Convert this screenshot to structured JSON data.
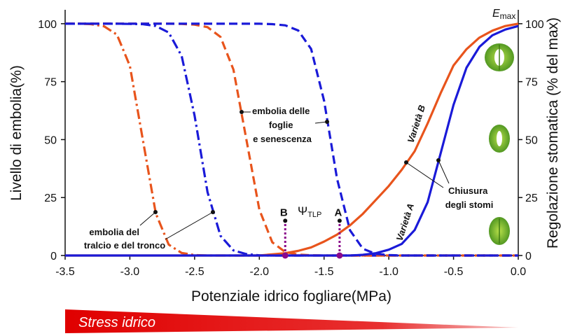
{
  "chart_data": {
    "type": "line",
    "x_label": "Potenziale idrico fogliare(MPa)",
    "y_label": "Livello di embolia(%)",
    "y2_label": "Regolazione stomatica (% del max)",
    "xlim": [
      -3.5,
      0
    ],
    "xticks": [
      -3.5,
      {
        "value": -3,
        "label": "-3.0"
      },
      -2.5,
      {
        "value": -2,
        "label": "-2.0"
      },
      -1.5,
      {
        "value": -1,
        "label": "-1.0"
      },
      -0.5,
      {
        "value": 0,
        "label": "0.0"
      }
    ],
    "ylim": [
      0,
      106
    ],
    "yticks": [
      0,
      25,
      50,
      75,
      100
    ],
    "y2lim": [
      0,
      106
    ],
    "y2ticks": [
      0,
      25,
      50,
      75,
      100
    ],
    "x": [
      -3.5,
      -3.4,
      -3.3,
      -3.2,
      -3.1,
      -3,
      -2.9,
      -2.8,
      -2.7,
      -2.6,
      -2.5,
      -2.4,
      -2.3,
      -2.2,
      -2.1,
      -2,
      -1.9,
      -1.8,
      -1.7,
      -1.6,
      -1.5,
      -1.4,
      -1.3,
      -1.2,
      -1.1,
      -1,
      -0.9,
      -0.8,
      -0.7,
      -0.6,
      -0.5,
      -0.4,
      -0.3,
      -0.2,
      -0.1,
      0
    ],
    "series": [
      {
        "color": "#e8541c",
        "style": "dashdot",
        "values": [
          100,
          100,
          99.8,
          98.9,
          95.3,
          81.8,
          50,
          18.2,
          4.7,
          1.1,
          0.2,
          0,
          0,
          0,
          0,
          0,
          0,
          0,
          0,
          0,
          0,
          0,
          0,
          0,
          0,
          0,
          0,
          0,
          0,
          0,
          0,
          0,
          0,
          0,
          0,
          0
        ]
      },
      {
        "color": "#1a1ad8",
        "style": "dashdot",
        "values": [
          100,
          100,
          100,
          100,
          100,
          99.9,
          99.8,
          99,
          96.2,
          86.1,
          60.3,
          27.3,
          8.5,
          2.2,
          0.6,
          0.1,
          0,
          0,
          0,
          0,
          0,
          0,
          0,
          0,
          0,
          0,
          0,
          0,
          0,
          0,
          0,
          0,
          0,
          0,
          0,
          0
        ]
      },
      {
        "color": "#e8541c",
        "style": "dashed",
        "values": [
          100,
          100,
          100,
          100,
          100,
          100,
          100,
          100,
          100,
          99.9,
          99.6,
          98.5,
          94.3,
          80.2,
          50,
          19.8,
          5.7,
          1.5,
          0.4,
          0.1,
          0,
          0,
          0,
          0,
          0,
          0,
          0,
          0,
          0,
          0,
          0,
          0,
          0,
          0,
          0,
          0
        ]
      },
      {
        "color": "#1a1ad8",
        "style": "dashed",
        "values": [
          100,
          100,
          100,
          100,
          100,
          100,
          100,
          100,
          100,
          100,
          100,
          100,
          100,
          100,
          100,
          100,
          99.8,
          99.3,
          97.1,
          89.1,
          66.8,
          33.2,
          10.9,
          2.9,
          0.7,
          0.2,
          0,
          0,
          0,
          0,
          0,
          0,
          0,
          0,
          0,
          0
        ]
      },
      {
        "color": "#e8541c",
        "style": "solid",
        "axis": "y2",
        "values": [
          0,
          0,
          0,
          0,
          0,
          0,
          0,
          0,
          0,
          0,
          0,
          0,
          0,
          0,
          0,
          0,
          0.5,
          1,
          2,
          3.5,
          6,
          9,
          13,
          18,
          24,
          30,
          37,
          45,
          57,
          70,
          82,
          89,
          94,
          97,
          99,
          100
        ]
      },
      {
        "color": "#1a1ad8",
        "style": "solid",
        "axis": "y2",
        "values": [
          0,
          0,
          0,
          0,
          0,
          0,
          0,
          0,
          0,
          0,
          0,
          0,
          0,
          0,
          0,
          0,
          0,
          0,
          0,
          0,
          0,
          0,
          0,
          0.3,
          1,
          2.5,
          5,
          11,
          23,
          44,
          65,
          81,
          90,
          95,
          97.5,
          99
        ]
      }
    ],
    "markers": [
      {
        "label": "B",
        "x": -1.8,
        "y": 15,
        "color": "#8b0a8b"
      },
      {
        "label": "A",
        "x": -1.38,
        "y": 15,
        "color": "#8b0a8b"
      }
    ],
    "annotations": {
      "tralcio": [
        "embolia del",
        "tralcio e del tronco"
      ],
      "foglie": [
        "embolia delle",
        "foglie",
        "e senescenza"
      ],
      "stomi": [
        "Chiusura",
        "degli stomi"
      ],
      "variety_b": "Varietà B",
      "variety_a": "Varietà A",
      "psi": "Ψ",
      "psi_sub": "TLP",
      "emax": "E",
      "emax_sub": "max"
    },
    "banner": "Stress idrico"
  }
}
